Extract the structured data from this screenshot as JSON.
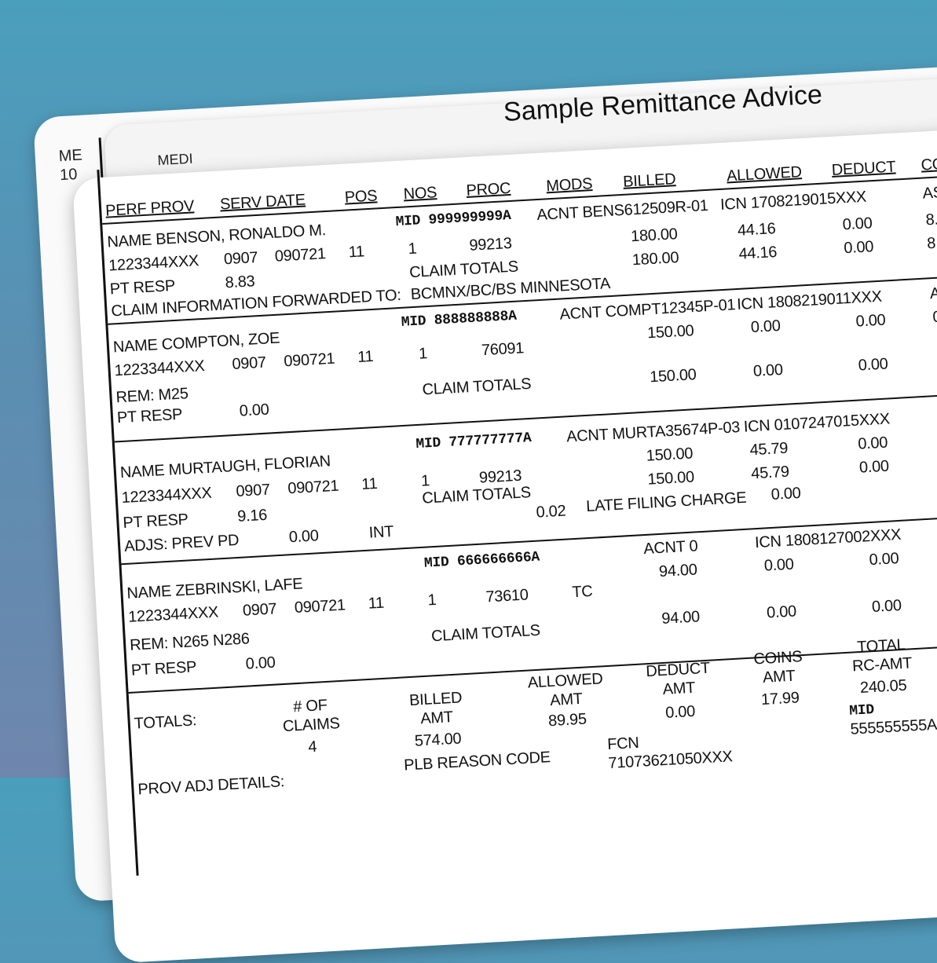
{
  "title": "Sample Remittance Advice",
  "back_sheet": {
    "stub1": "ME",
    "stub2": "10",
    "stub3": "MEDI"
  },
  "headers": {
    "perf_prov": "PERF PROV",
    "serv_date": "SERV DATE",
    "pos": "POS",
    "nos": "NOS",
    "proc": "PROC",
    "mods": "MODS",
    "billed": "BILLED",
    "allowed": "ALLOWED",
    "deduct": "DEDUCT",
    "co": "CO"
  },
  "claims": [
    {
      "name": "NAME  BENSON, RONALDO M.",
      "mid": "MID 999999999A",
      "acnt": "ACNT BENS612509R-01",
      "icn": "ICN 1708219015XXX",
      "edge_top": "AS",
      "npi": "1223344XXX",
      "d1": "0907",
      "d2": "090721",
      "pos": "11",
      "nos": "1",
      "proc": "99213",
      "billed": "180.00",
      "allowed": "44.16",
      "deduct": "0.00",
      "edge1": "8.",
      "totals_label": "CLAIM TOTALS",
      "t_billed": "180.00",
      "t_allowed": "44.16",
      "t_deduct": "0.00",
      "edge2": "8.",
      "pt_resp_label": "PT RESP",
      "pt_resp": "8.83",
      "fwd_label": "CLAIM INFORMATION FORWARDED TO:",
      "fwd": "BCMNX/BC/BS MINNESOTA"
    },
    {
      "name": "NAME  COMPTON, ZOE",
      "mid": "MID 888888888A",
      "acnt": "ACNT  COMPT12345P-01",
      "icn": "ICN 1808219011XXX",
      "edge_top": "A",
      "npi": "1223344XXX",
      "d1": "0907",
      "d2": "090721",
      "pos": "11",
      "nos": "1",
      "proc": "76091",
      "billed": "150.00",
      "allowed": "0.00",
      "deduct": "0.00",
      "edge1": "0",
      "rem": "REM: M25",
      "totals_label": "CLAIM TOTALS",
      "t_billed": "150.00",
      "t_allowed": "0.00",
      "t_deduct": "0.00",
      "edge2": "(",
      "pt_resp_label": "PT RESP",
      "pt_resp": "0.00"
    },
    {
      "name": "NAME  MURTAUGH, FLORIAN",
      "mid": "MID 777777777A",
      "acnt": "ACNT MURTA35674P-03",
      "icn": "ICN 0107247015XXX",
      "npi": "1223344XXX",
      "d1": "0907",
      "d2": "090721",
      "pos": "11",
      "nos": "1",
      "proc": "99213",
      "billed": "150.00",
      "allowed": "45.79",
      "deduct": "0.00",
      "totals_label": "CLAIM TOTALS",
      "t_billed": "150.00",
      "t_allowed": "45.79",
      "t_deduct": "0.00",
      "pt_resp_label": "PT RESP",
      "pt_resp": "9.16",
      "adjs_label": "ADJS:  PREV PD",
      "adjs_prev": "0.00",
      "int_label": "INT",
      "int": "0.02",
      "late_label": "LATE FILING CHARGE",
      "late": "0.00"
    },
    {
      "name": "NAME  ZEBRINSKI, LAFE",
      "mid": "MID 666666666A",
      "acnt": "ACNT  0",
      "icn": "ICN 1808127002XXX",
      "npi": "1223344XXX",
      "d1": "0907",
      "d2": "090721",
      "pos": "11",
      "nos": "1",
      "proc": "73610",
      "mods": "TC",
      "billed": "94.00",
      "allowed": "0.00",
      "deduct": "0.00",
      "rem": "REM:   N265   N286",
      "totals_label": "CLAIM TOTALS",
      "t_billed": "94.00",
      "t_allowed": "0.00",
      "t_deduct": "0.00",
      "pt_resp_label": "PT RESP",
      "pt_resp": "0.00"
    }
  ],
  "totals": {
    "label": "TOTALS:",
    "claims_h1": "# OF",
    "claims_h2": "CLAIMS",
    "claims": "4",
    "billed_h1": "BILLED",
    "billed_h2": "AMT",
    "billed": "574.00",
    "allowed_h1": "ALLOWED",
    "allowed_h2": "AMT",
    "allowed": "89.95",
    "deduct_h1": "DEDUCT",
    "deduct_h2": "AMT",
    "deduct": "0.00",
    "coins_h1": "COINS",
    "coins_h2": "AMT",
    "coins": "17.99",
    "rc_h1": "TOTAL",
    "rc_h2": "RC-AMT",
    "rc": "240.05",
    "mid_label": "MID",
    "mid": "555555555A"
  },
  "footer": {
    "prov_adj": "PROV ADJ DETAILS:",
    "plb": "PLB REASON CODE",
    "fcn_label": "FCN",
    "fcn": "71073621050XXX"
  }
}
